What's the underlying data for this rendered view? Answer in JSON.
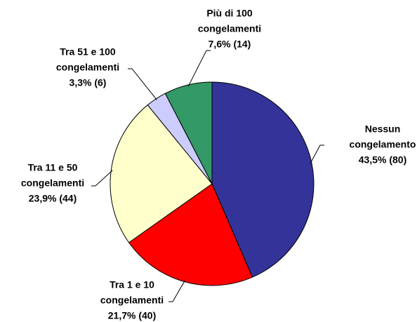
{
  "chart_data": {
    "type": "pie",
    "categories": [
      [
        "Nessun",
        "congelamento"
      ],
      [
        "Tra 1 e 10",
        "congelamenti"
      ],
      [
        "Tra 11 e 50",
        "congelamenti"
      ],
      [
        "Tra 51 e 100",
        "congelamenti"
      ],
      [
        "Più di 100",
        "congelamenti"
      ]
    ],
    "values": [
      43.5,
      21.7,
      23.9,
      3.3,
      7.6
    ],
    "value_labels": [
      "43,5% (80)",
      "21,7% (40)",
      "23,9% (44)",
      "3,3% (6)",
      "7,6% (14)"
    ],
    "colors": [
      "#333399",
      "#ff0000",
      "#ffffcc",
      "#ccccff",
      "#339966"
    ]
  }
}
